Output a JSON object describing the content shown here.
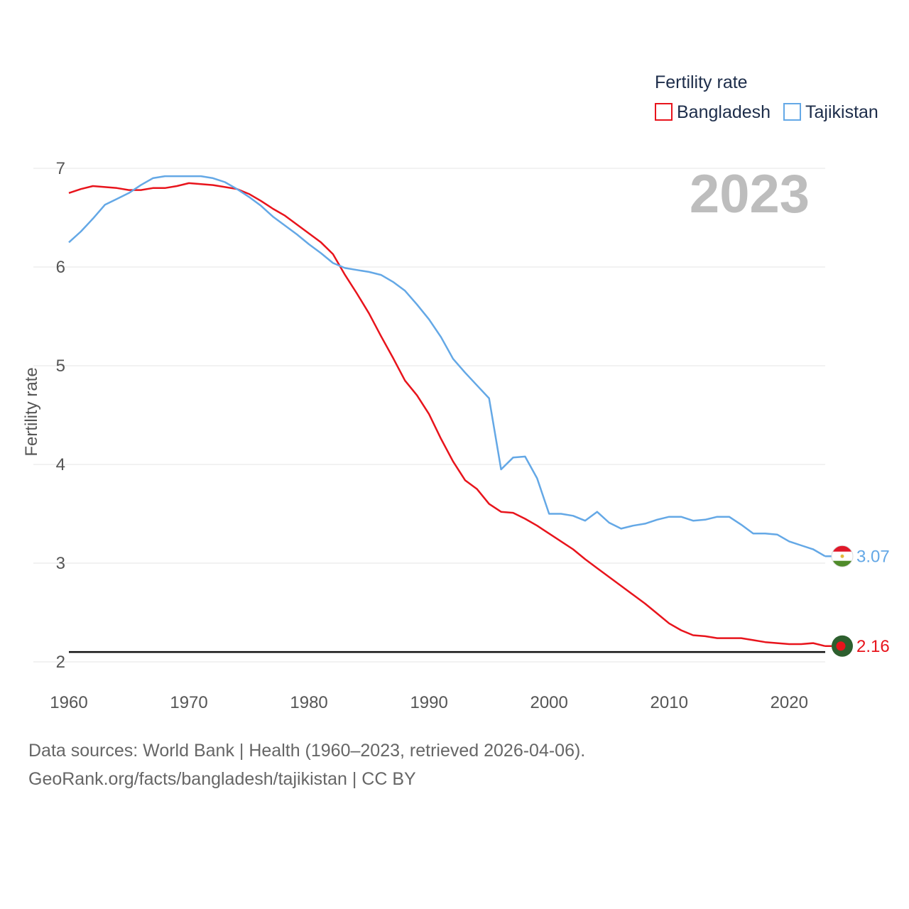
{
  "chart_data": {
    "type": "line",
    "year": "2023",
    "ylabel": "Fertility rate",
    "xlabel": "",
    "xlim": [
      1960,
      2023
    ],
    "ylim": [
      2,
      7
    ],
    "xticks": [
      "1960",
      "1970",
      "1980",
      "1990",
      "2000",
      "2010",
      "2020"
    ],
    "yticks": [
      "2",
      "3",
      "4",
      "5",
      "6",
      "7"
    ],
    "reference_line": 2.1,
    "legend": {
      "title": "Fertility rate",
      "position": "top-right"
    },
    "x": [
      1960,
      1961,
      1962,
      1963,
      1964,
      1965,
      1966,
      1967,
      1968,
      1969,
      1970,
      1971,
      1972,
      1973,
      1974,
      1975,
      1976,
      1977,
      1978,
      1979,
      1980,
      1981,
      1982,
      1983,
      1984,
      1985,
      1986,
      1987,
      1988,
      1989,
      1990,
      1991,
      1992,
      1993,
      1994,
      1995,
      1996,
      1997,
      1998,
      1999,
      2000,
      2001,
      2002,
      2003,
      2004,
      2005,
      2006,
      2007,
      2008,
      2009,
      2010,
      2011,
      2012,
      2013,
      2014,
      2015,
      2016,
      2017,
      2018,
      2019,
      2020,
      2021,
      2022,
      2023
    ],
    "series": [
      {
        "name": "Bangladesh",
        "color": "#e8141c",
        "end_label": "2.16",
        "values": [
          6.75,
          6.79,
          6.82,
          6.81,
          6.8,
          6.78,
          6.78,
          6.8,
          6.8,
          6.82,
          6.85,
          6.84,
          6.83,
          6.81,
          6.79,
          6.74,
          6.67,
          6.59,
          6.52,
          6.43,
          6.34,
          6.25,
          6.13,
          5.92,
          5.73,
          5.53,
          5.3,
          5.08,
          4.85,
          4.7,
          4.51,
          4.26,
          4.03,
          3.84,
          3.75,
          3.6,
          3.52,
          3.51,
          3.45,
          3.38,
          3.3,
          3.22,
          3.14,
          3.04,
          2.95,
          2.86,
          2.77,
          2.68,
          2.59,
          2.49,
          2.39,
          2.32,
          2.27,
          2.26,
          2.24,
          2.24,
          2.24,
          2.22,
          2.2,
          2.19,
          2.18,
          2.18,
          2.19,
          2.16
        ]
      },
      {
        "name": "Tajikistan",
        "color": "#64a8e6",
        "end_label": "3.07",
        "values": [
          6.25,
          6.36,
          6.49,
          6.63,
          6.69,
          6.75,
          6.83,
          6.9,
          6.92,
          6.92,
          6.92,
          6.92,
          6.9,
          6.86,
          6.79,
          6.71,
          6.62,
          6.51,
          6.42,
          6.33,
          6.23,
          6.14,
          6.04,
          5.99,
          5.97,
          5.95,
          5.92,
          5.85,
          5.76,
          5.62,
          5.47,
          5.29,
          5.07,
          4.93,
          4.8,
          4.67,
          3.95,
          4.07,
          4.08,
          3.86,
          3.5,
          3.5,
          3.48,
          3.43,
          3.52,
          3.41,
          3.35,
          3.38,
          3.4,
          3.44,
          3.47,
          3.47,
          3.43,
          3.44,
          3.47,
          3.47,
          3.39,
          3.3,
          3.3,
          3.29,
          3.22,
          3.18,
          3.14,
          3.07
        ]
      }
    ]
  },
  "footer": {
    "line1": "Data sources: World Bank | Health (1960–2023, retrieved 2026-04-06).",
    "line2": "GeoRank.org/facts/bangladesh/tajikistan | CC BY"
  }
}
